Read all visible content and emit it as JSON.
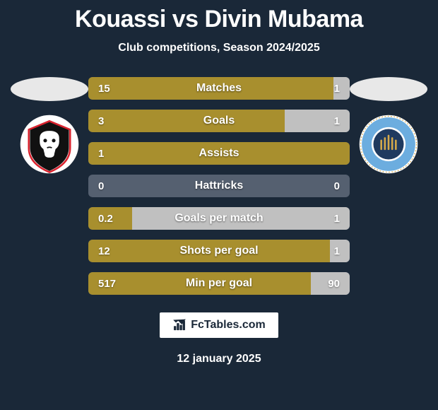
{
  "title": "Kouassi vs Divin Mubama",
  "subtitle": "Club competitions, Season 2024/2025",
  "date": "12 january 2025",
  "brand": "FcTables.com",
  "colors": {
    "bar_left": "#a88f2e",
    "bar_right": "#c0c0c0",
    "bar_empty": "#556070",
    "ellipse": "#e8e8e8",
    "background": "#1a2838",
    "text": "#ffffff"
  },
  "crest_left": {
    "bg": "#ffffff",
    "shield": "#111111",
    "accent": "#d9232e"
  },
  "crest_right": {
    "ring": "#ffffff",
    "outer": "#6caddf",
    "inner": "#1f3a5f",
    "rope": "#d4a94a"
  },
  "stats": [
    {
      "label": "Matches",
      "left_val": "15",
      "right_val": "1",
      "left_pct": 93.75,
      "right_pct": 6.25
    },
    {
      "label": "Goals",
      "left_val": "3",
      "right_val": "1",
      "left_pct": 75.0,
      "right_pct": 25.0
    },
    {
      "label": "Assists",
      "left_val": "1",
      "right_val": "",
      "left_pct": 100.0,
      "right_pct": 0.0
    },
    {
      "label": "Hattricks",
      "left_val": "0",
      "right_val": "0",
      "left_pct": 0.0,
      "right_pct": 0.0
    },
    {
      "label": "Goals per match",
      "left_val": "0.2",
      "right_val": "1",
      "left_pct": 16.67,
      "right_pct": 83.33
    },
    {
      "label": "Shots per goal",
      "left_val": "12",
      "right_val": "1",
      "left_pct": 92.31,
      "right_pct": 7.69
    },
    {
      "label": "Min per goal",
      "left_val": "517",
      "right_val": "90",
      "left_pct": 85.17,
      "right_pct": 14.83
    }
  ]
}
